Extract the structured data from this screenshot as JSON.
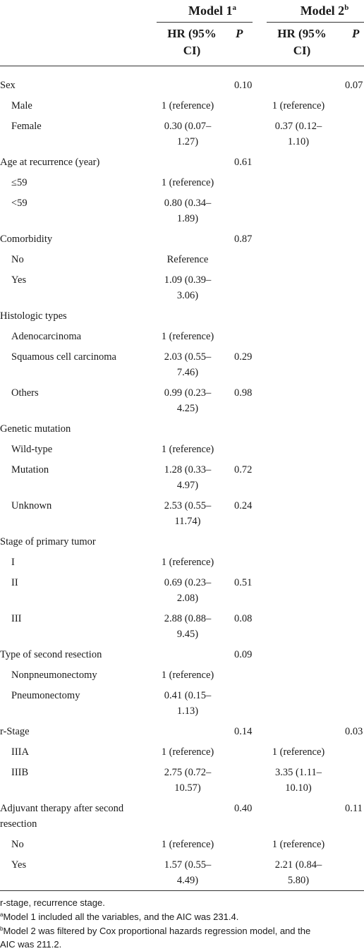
{
  "header": {
    "model1": "Model 1",
    "model1_sup": "a",
    "model2": "Model 2",
    "model2_sup": "b",
    "hr_label": [
      "HR (95%",
      "CI)"
    ],
    "p_label": "P"
  },
  "rows": [
    {
      "label": "Sex",
      "indent": false,
      "hr1": [],
      "p1": "0.10",
      "hr2": [],
      "p2": "0.07"
    },
    {
      "label": "Male",
      "indent": true,
      "hr1": [
        "1 (reference)"
      ],
      "p1": "",
      "hr2": [
        "1 (reference)"
      ],
      "p2": ""
    },
    {
      "label": "Female",
      "indent": true,
      "hr1": [
        "0.30 (0.07–",
        "1.27)"
      ],
      "p1": "",
      "hr2": [
        "0.37 (0.12–",
        "1.10)"
      ],
      "p2": ""
    },
    {
      "label": "Age at recurrence (year)",
      "indent": false,
      "hr1": [],
      "p1": "0.61",
      "hr2": [],
      "p2": ""
    },
    {
      "label": "≤59",
      "indent": true,
      "hr1": [
        "1 (reference)"
      ],
      "p1": "",
      "hr2": [],
      "p2": ""
    },
    {
      "label": "<59",
      "indent": true,
      "hr1": [
        "0.80 (0.34–",
        "1.89)"
      ],
      "p1": "",
      "hr2": [],
      "p2": ""
    },
    {
      "label": "Comorbidity",
      "indent": false,
      "hr1": [],
      "p1": "0.87",
      "hr2": [],
      "p2": ""
    },
    {
      "label": "No",
      "indent": true,
      "hr1": [
        "Reference"
      ],
      "p1": "",
      "hr2": [],
      "p2": ""
    },
    {
      "label": "Yes",
      "indent": true,
      "hr1": [
        "1.09 (0.39–",
        "3.06)"
      ],
      "p1": "",
      "hr2": [],
      "p2": ""
    },
    {
      "label": "Histologic types",
      "indent": false,
      "hr1": [],
      "p1": "",
      "hr2": [],
      "p2": ""
    },
    {
      "label": "Adenocarcinoma",
      "indent": true,
      "hr1": [
        "1 (reference)"
      ],
      "p1": "",
      "hr2": [],
      "p2": ""
    },
    {
      "label": "Squamous cell carcinoma",
      "indent": true,
      "hr1": [
        "2.03 (0.55–",
        "7.46)"
      ],
      "p1": "0.29",
      "hr2": [],
      "p2": ""
    },
    {
      "label": "Others",
      "indent": true,
      "hr1": [
        "0.99 (0.23–",
        "4.25)"
      ],
      "p1": "0.98",
      "hr2": [],
      "p2": ""
    },
    {
      "label": "Genetic mutation",
      "indent": false,
      "hr1": [],
      "p1": "",
      "hr2": [],
      "p2": ""
    },
    {
      "label": "Wild-type",
      "indent": true,
      "hr1": [
        "1 (reference)"
      ],
      "p1": "",
      "hr2": [],
      "p2": ""
    },
    {
      "label": "Mutation",
      "indent": true,
      "hr1": [
        "1.28 (0.33–",
        "4.97)"
      ],
      "p1": "0.72",
      "hr2": [],
      "p2": ""
    },
    {
      "label": "Unknown",
      "indent": true,
      "hr1": [
        "2.53 (0.55–",
        "11.74)"
      ],
      "p1": "0.24",
      "hr2": [],
      "p2": ""
    },
    {
      "label": "Stage of primary tumor",
      "indent": false,
      "hr1": [],
      "p1": "",
      "hr2": [],
      "p2": ""
    },
    {
      "label": "I",
      "indent": true,
      "hr1": [
        "1 (reference)"
      ],
      "p1": "",
      "hr2": [],
      "p2": ""
    },
    {
      "label": "II",
      "indent": true,
      "hr1": [
        "0.69 (0.23–",
        "2.08)"
      ],
      "p1": "0.51",
      "hr2": [],
      "p2": ""
    },
    {
      "label": "III",
      "indent": true,
      "hr1": [
        "2.88 (0.88–",
        "9.45)"
      ],
      "p1": "0.08",
      "hr2": [],
      "p2": ""
    },
    {
      "label": "Type of second resection",
      "indent": false,
      "hr1": [],
      "p1": "0.09",
      "hr2": [],
      "p2": ""
    },
    {
      "label": "Nonpneumonectomy",
      "indent": true,
      "hr1": [
        "1 (reference)"
      ],
      "p1": "",
      "hr2": [],
      "p2": ""
    },
    {
      "label": "Pneumonectomy",
      "indent": true,
      "hr1": [
        "0.41 (0.15–",
        "1.13)"
      ],
      "p1": "",
      "hr2": [],
      "p2": ""
    },
    {
      "label": "r-Stage",
      "indent": false,
      "hr1": [],
      "p1": "0.14",
      "hr2": [],
      "p2": "0.03"
    },
    {
      "label": "IIIA",
      "indent": true,
      "hr1": [
        "1 (reference)"
      ],
      "p1": "",
      "hr2": [
        "1 (reference)"
      ],
      "p2": ""
    },
    {
      "label": "IIIB",
      "indent": true,
      "hr1": [
        "2.75 (0.72–",
        "10.57)"
      ],
      "p1": "",
      "hr2": [
        "3.35 (1.11–",
        "10.10)"
      ],
      "p2": ""
    },
    {
      "label": [
        "Adjuvant therapy after second",
        "resection"
      ],
      "indent": false,
      "hr1": [],
      "p1": "0.40",
      "hr2": [],
      "p2": "0.11"
    },
    {
      "label": "No",
      "indent": true,
      "hr1": [
        "1 (reference)"
      ],
      "p1": "",
      "hr2": [
        "1 (reference)"
      ],
      "p2": ""
    },
    {
      "label": "Yes",
      "indent": true,
      "hr1": [
        "1.57 (0.55–",
        "4.49)"
      ],
      "p1": "",
      "hr2": [
        "2.21 (0.84–",
        "5.80)"
      ],
      "p2": ""
    }
  ],
  "footnotes": {
    "abbrev": "r-stage, recurrence stage.",
    "a_mark": "a",
    "a_text": "Model 1 included all the variables, and the AIC was 231.4.",
    "b_mark": "b",
    "b_text_1": "Model 2 was filtered by Cox proportional hazards regression model, and the",
    "b_text_2": "AIC was 211.2."
  }
}
